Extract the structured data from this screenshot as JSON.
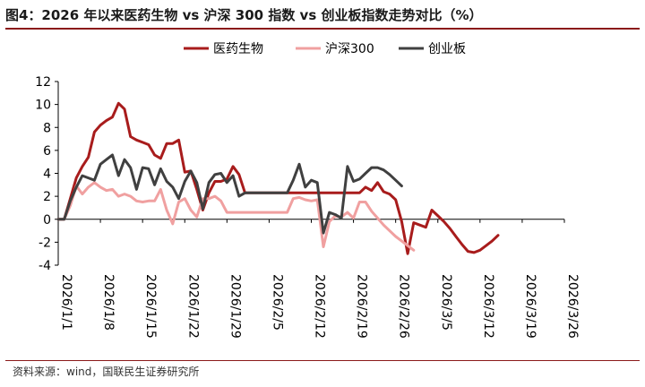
{
  "figure": {
    "title": "图4：2026 年以来医药生物 vs 沪深 300 指数 vs 创业板指数走势对比（%）",
    "source": "资料来源：wind，国联民生证券研究所"
  },
  "chart_data": {
    "type": "line",
    "title": "",
    "xlabel": "",
    "ylabel": "",
    "ylim": [
      -4,
      12
    ],
    "yticks": [
      -4,
      -2,
      0,
      2,
      4,
      6,
      8,
      10,
      12
    ],
    "xticks": [
      "2026/1/1",
      "2026/1/8",
      "2026/1/15",
      "2026/1/22",
      "2026/1/29",
      "2026/2/5",
      "2026/2/12",
      "2026/2/19",
      "2026/2/26",
      "2026/3/5",
      "2026/3/12",
      "2026/3/19",
      "2026/3/26"
    ],
    "legend_position": "top-right",
    "grid": false,
    "series": [
      {
        "name": "医药生物",
        "color": "#a81c1c",
        "points": [
          [
            "2026/1/1",
            0
          ],
          [
            "2026/1/2",
            0
          ],
          [
            "2026/1/3",
            1.8
          ],
          [
            "2026/1/4",
            3.6
          ],
          [
            "2026/1/5",
            4.6
          ],
          [
            "2026/1/6",
            5.4
          ],
          [
            "2026/1/7",
            7.6
          ],
          [
            "2026/1/8",
            8.2
          ],
          [
            "2026/1/9",
            8.6
          ],
          [
            "2026/1/10",
            8.9
          ],
          [
            "2026/1/11",
            10.1
          ],
          [
            "2026/1/12",
            9.6
          ],
          [
            "2026/1/13",
            7.2
          ],
          [
            "2026/1/14",
            6.9
          ],
          [
            "2026/1/15",
            6.7
          ],
          [
            "2026/1/16",
            6.5
          ],
          [
            "2026/1/17",
            5.6
          ],
          [
            "2026/1/18",
            5.3
          ],
          [
            "2026/1/19",
            6.6
          ],
          [
            "2026/1/20",
            6.6
          ],
          [
            "2026/1/21",
            6.9
          ],
          [
            "2026/1/22",
            4.1
          ],
          [
            "2026/1/23",
            4.2
          ],
          [
            "2026/1/24",
            2.6
          ],
          [
            "2026/1/25",
            0.8
          ],
          [
            "2026/1/26",
            2.3
          ],
          [
            "2026/1/27",
            3.3
          ],
          [
            "2026/1/28",
            3.3
          ],
          [
            "2026/1/29",
            3.5
          ],
          [
            "2026/1/30",
            4.6
          ],
          [
            "2026/1/31",
            3.9
          ],
          [
            "2026/2/1",
            2.3
          ],
          [
            "2026/2/2",
            2.3
          ],
          [
            "2026/2/3",
            2.3
          ],
          [
            "2026/2/4",
            2.3
          ],
          [
            "2026/2/5",
            2.3
          ],
          [
            "2026/2/6",
            2.3
          ],
          [
            "2026/2/7",
            2.3
          ],
          [
            "2026/2/8",
            2.3
          ],
          [
            "2026/2/9",
            2.3
          ],
          [
            "2026/2/10",
            2.3
          ],
          [
            "2026/2/11",
            2.3
          ],
          [
            "2026/2/12",
            2.3
          ],
          [
            "2026/2/13",
            2.3
          ],
          [
            "2026/2/14",
            2.3
          ],
          [
            "2026/2/15",
            2.3
          ],
          [
            "2026/2/16",
            2.3
          ],
          [
            "2026/2/17",
            2.3
          ],
          [
            "2026/2/18",
            2.3
          ],
          [
            "2026/2/19",
            2.3
          ],
          [
            "2026/2/20",
            2.3
          ],
          [
            "2026/2/21",
            2.8
          ],
          [
            "2026/2/22",
            2.5
          ],
          [
            "2026/2/23",
            3.2
          ],
          [
            "2026/2/24",
            2.4
          ],
          [
            "2026/2/25",
            2.2
          ],
          [
            "2026/2/26",
            1.7
          ],
          [
            "2026/2/27",
            -0.2
          ],
          [
            "2026/2/28",
            -3.0
          ],
          [
            "2026/3/1",
            -0.3
          ],
          [
            "2026/3/2",
            -0.5
          ],
          [
            "2026/3/3",
            -0.7
          ],
          [
            "2026/3/4",
            0.8
          ],
          [
            "2026/3/5",
            0.3
          ],
          [
            "2026/3/6",
            -0.2
          ],
          [
            "2026/3/7",
            -0.8
          ],
          [
            "2026/3/8",
            -1.5
          ],
          [
            "2026/3/9",
            -2.2
          ],
          [
            "2026/3/10",
            -2.8
          ],
          [
            "2026/3/11",
            -2.9
          ],
          [
            "2026/3/12",
            -2.7
          ],
          [
            "2026/3/13",
            -2.3
          ],
          [
            "2026/3/14",
            -1.9
          ],
          [
            "2026/3/15",
            -1.4
          ]
        ]
      },
      {
        "name": "沪深300",
        "color": "#f0a0a0",
        "points": [
          [
            "2026/1/1",
            0
          ],
          [
            "2026/1/2",
            0
          ],
          [
            "2026/1/3",
            1.2
          ],
          [
            "2026/1/4",
            2.9
          ],
          [
            "2026/1/5",
            2.2
          ],
          [
            "2026/1/6",
            2.8
          ],
          [
            "2026/1/7",
            3.2
          ],
          [
            "2026/1/8",
            2.8
          ],
          [
            "2026/1/9",
            2.5
          ],
          [
            "2026/1/10",
            2.6
          ],
          [
            "2026/1/11",
            2.0
          ],
          [
            "2026/1/12",
            2.2
          ],
          [
            "2026/1/13",
            2.0
          ],
          [
            "2026/1/14",
            1.6
          ],
          [
            "2026/1/15",
            1.5
          ],
          [
            "2026/1/16",
            1.6
          ],
          [
            "2026/1/17",
            1.6
          ],
          [
            "2026/1/18",
            2.6
          ],
          [
            "2026/1/19",
            0.8
          ],
          [
            "2026/1/20",
            -0.4
          ],
          [
            "2026/1/21",
            1.5
          ],
          [
            "2026/1/22",
            1.8
          ],
          [
            "2026/1/23",
            0.8
          ],
          [
            "2026/1/24",
            0.2
          ],
          [
            "2026/1/25",
            1.8
          ],
          [
            "2026/1/26",
            1.8
          ],
          [
            "2026/1/27",
            2.0
          ],
          [
            "2026/1/28",
            1.6
          ],
          [
            "2026/1/29",
            0.6
          ],
          [
            "2026/1/30",
            0.6
          ],
          [
            "2026/1/31",
            0.6
          ],
          [
            "2026/2/1",
            0.6
          ],
          [
            "2026/2/2",
            0.6
          ],
          [
            "2026/2/3",
            0.6
          ],
          [
            "2026/2/4",
            0.6
          ],
          [
            "2026/2/5",
            0.6
          ],
          [
            "2026/2/6",
            0.6
          ],
          [
            "2026/2/7",
            0.6
          ],
          [
            "2026/2/8",
            0.6
          ],
          [
            "2026/2/9",
            1.8
          ],
          [
            "2026/2/10",
            1.9
          ],
          [
            "2026/2/11",
            1.7
          ],
          [
            "2026/2/12",
            1.6
          ],
          [
            "2026/2/13",
            1.7
          ],
          [
            "2026/2/14",
            -2.4
          ],
          [
            "2026/2/15",
            -0.2
          ],
          [
            "2026/2/16",
            0.3
          ],
          [
            "2026/2/17",
            0.2
          ],
          [
            "2026/2/18",
            0.6
          ],
          [
            "2026/2/19",
            0.1
          ],
          [
            "2026/2/20",
            1.5
          ],
          [
            "2026/2/21",
            1.5
          ],
          [
            "2026/2/22",
            0.7
          ],
          [
            "2026/2/23",
            0.1
          ],
          [
            "2026/2/24",
            -0.5
          ],
          [
            "2026/2/25",
            -1.0
          ],
          [
            "2026/2/26",
            -1.5
          ],
          [
            "2026/2/27",
            -1.9
          ],
          [
            "2026/2/28",
            -2.3
          ],
          [
            "2026/3/1",
            -2.7
          ]
        ]
      },
      {
        "name": "创业板",
        "color": "#404040",
        "points": [
          [
            "2026/1/1",
            0
          ],
          [
            "2026/1/2",
            0
          ],
          [
            "2026/1/3",
            1.6
          ],
          [
            "2026/1/4",
            2.8
          ],
          [
            "2026/1/5",
            3.8
          ],
          [
            "2026/1/6",
            3.6
          ],
          [
            "2026/1/7",
            3.4
          ],
          [
            "2026/1/8",
            4.8
          ],
          [
            "2026/1/9",
            5.2
          ],
          [
            "2026/1/10",
            5.6
          ],
          [
            "2026/1/11",
            3.8
          ],
          [
            "2026/1/12",
            5.2
          ],
          [
            "2026/1/13",
            4.5
          ],
          [
            "2026/1/14",
            2.6
          ],
          [
            "2026/1/15",
            4.5
          ],
          [
            "2026/1/16",
            4.4
          ],
          [
            "2026/1/17",
            3.0
          ],
          [
            "2026/1/18",
            4.4
          ],
          [
            "2026/1/19",
            3.3
          ],
          [
            "2026/1/20",
            2.8
          ],
          [
            "2026/1/21",
            1.8
          ],
          [
            "2026/1/22",
            3.3
          ],
          [
            "2026/1/23",
            4.2
          ],
          [
            "2026/1/24",
            3.2
          ],
          [
            "2026/1/25",
            0.9
          ],
          [
            "2026/1/26",
            3.2
          ],
          [
            "2026/1/27",
            3.9
          ],
          [
            "2026/1/28",
            4.0
          ],
          [
            "2026/1/29",
            3.2
          ],
          [
            "2026/1/30",
            3.8
          ],
          [
            "2026/1/31",
            2.0
          ],
          [
            "2026/2/1",
            2.3
          ],
          [
            "2026/2/2",
            2.3
          ],
          [
            "2026/2/3",
            2.3
          ],
          [
            "2026/2/4",
            2.3
          ],
          [
            "2026/2/5",
            2.3
          ],
          [
            "2026/2/6",
            2.3
          ],
          [
            "2026/2/7",
            2.3
          ],
          [
            "2026/2/8",
            2.3
          ],
          [
            "2026/2/9",
            3.4
          ],
          [
            "2026/2/10",
            4.8
          ],
          [
            "2026/2/11",
            2.8
          ],
          [
            "2026/2/12",
            3.4
          ],
          [
            "2026/2/13",
            3.2
          ],
          [
            "2026/2/14",
            -1.2
          ],
          [
            "2026/2/15",
            0.6
          ],
          [
            "2026/2/16",
            0.4
          ],
          [
            "2026/2/17",
            0.1
          ],
          [
            "2026/2/18",
            4.6
          ],
          [
            "2026/2/19",
            3.3
          ],
          [
            "2026/2/20",
            3.5
          ],
          [
            "2026/2/21",
            4.0
          ],
          [
            "2026/2/22",
            4.5
          ],
          [
            "2026/2/23",
            4.5
          ],
          [
            "2026/2/24",
            4.3
          ],
          [
            "2026/2/25",
            3.9
          ],
          [
            "2026/2/26",
            3.4
          ],
          [
            "2026/2/27",
            2.9
          ]
        ]
      }
    ]
  }
}
